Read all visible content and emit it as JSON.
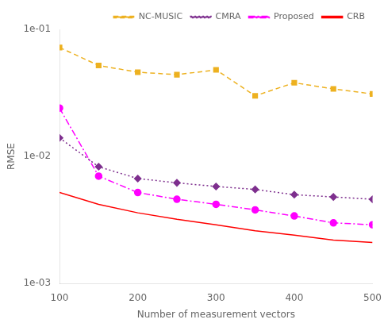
{
  "chart_data": {
    "type": "line",
    "x": [
      100,
      150,
      200,
      250,
      300,
      350,
      400,
      450,
      500
    ],
    "series": [
      {
        "name": "NC-MUSIC",
        "color": "#EDB120",
        "marker": "square",
        "line_style": "dashed",
        "values": [
          0.072,
          0.052,
          0.046,
          0.044,
          0.048,
          0.03,
          0.038,
          0.034,
          0.031
        ]
      },
      {
        "name": "CMRA",
        "color": "#7E2F8E",
        "marker": "diamond",
        "line_style": "dotted",
        "values": [
          0.014,
          0.0083,
          0.0067,
          0.0062,
          0.0058,
          0.0055,
          0.005,
          0.0048,
          0.0046
        ]
      },
      {
        "name": "Proposed",
        "color": "#FF00FF",
        "marker": "circle",
        "line_style": "dashdot",
        "values": [
          0.024,
          0.007,
          0.0052,
          0.0046,
          0.0042,
          0.0038,
          0.0034,
          0.003,
          0.0029
        ]
      },
      {
        "name": "CRB",
        "color": "#FF0000",
        "marker": "none",
        "line_style": "solid",
        "values": [
          0.0052,
          0.0042,
          0.0036,
          0.0032,
          0.0029,
          0.0026,
          0.0024,
          0.0022,
          0.0021
        ]
      }
    ],
    "xlabel": "Number of measurement vectors",
    "ylabel": "RMSE",
    "xlim": [
      100,
      500
    ],
    "xticks": [
      100,
      200,
      300,
      400,
      500
    ],
    "ylim": [
      0.001,
      0.1
    ],
    "yticks": [
      {
        "value": 0.001,
        "label": "1e-03"
      },
      {
        "value": 0.01,
        "label": "1e-02"
      },
      {
        "value": 0.1,
        "label": "1e-01"
      }
    ],
    "log": "y",
    "grid": false,
    "legend": "upper right"
  }
}
